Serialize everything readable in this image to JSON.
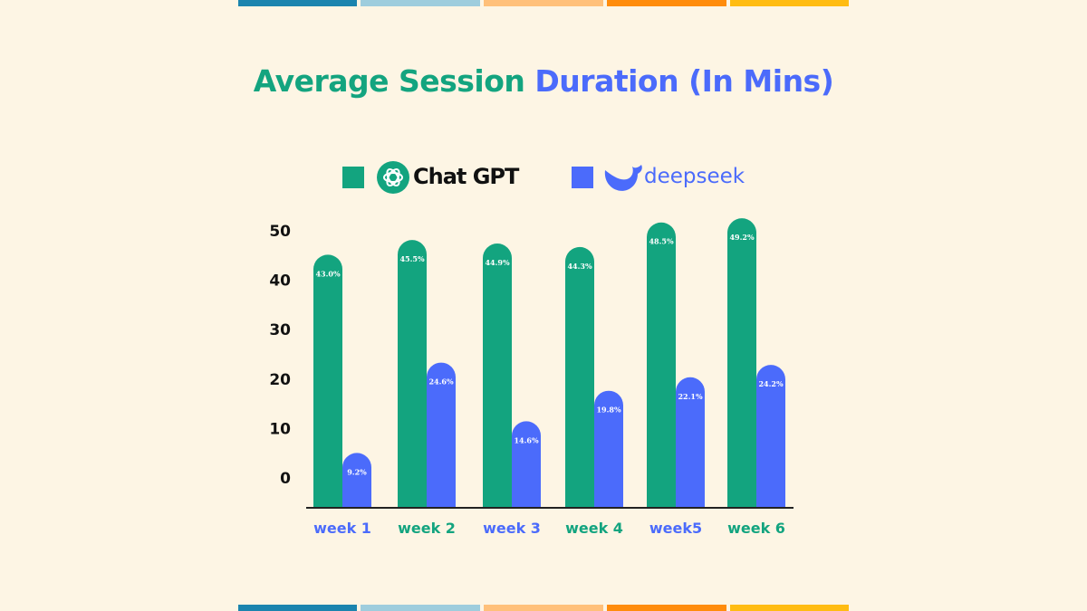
{
  "colors": {
    "background": "#fdf5e4",
    "chatgpt": "#13a47f",
    "deepseek": "#4b6bfb",
    "stripes": [
      "#1b84ae",
      "#9ecddd",
      "#ffc07a",
      "#ff8c0c",
      "#ffbc12"
    ]
  },
  "title": {
    "part1": "Average Session",
    "part2": "Duration (In Mins)"
  },
  "legend": {
    "chatgpt": {
      "label": "Chat GPT",
      "icon": "openai-logo-icon"
    },
    "deepseek": {
      "label": "deepseek",
      "icon": "deepseek-whale-icon"
    }
  },
  "chart_data": {
    "type": "bar",
    "title": "Average Session Duration (In Mins)",
    "categories": [
      "week 1",
      "week 2",
      "week 3",
      "week 4",
      "week5",
      "week 6"
    ],
    "series": [
      {
        "name": "Chat GPT",
        "values": [
          43.0,
          45.5,
          44.9,
          44.3,
          48.5,
          49.2
        ],
        "labels": [
          "43.0%",
          "45.5%",
          "44.9%",
          "44.3%",
          "48.5%",
          "49.2%"
        ]
      },
      {
        "name": "deepseek",
        "values": [
          9.2,
          24.6,
          14.6,
          19.8,
          22.1,
          24.2
        ],
        "labels": [
          "9.2%",
          "24.6%",
          "14.6%",
          "19.8%",
          "22.1%",
          "24.2%"
        ]
      }
    ],
    "yticks": [
      "0",
      "10",
      "20",
      "30",
      "40",
      "50"
    ],
    "ylim": [
      0,
      50
    ],
    "grid": false,
    "legend": "top"
  }
}
